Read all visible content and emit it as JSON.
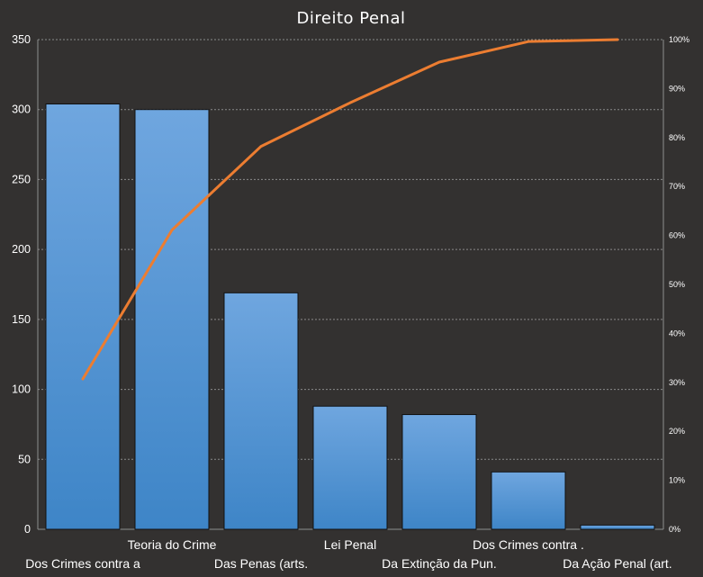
{
  "chart_data": {
    "type": "bar",
    "title": "Direito Penal",
    "xlabel": "",
    "ylabel": "",
    "categories": [
      "Dos Crimes contra a",
      "Teoria do Crime",
      "Das Penas (arts.",
      "Lei Penal",
      "Da Extinção da Pun.",
      "Dos Crimes contra .",
      "Da Ação Penal (art."
    ],
    "series": [
      {
        "type": "bar",
        "values": [
          304,
          300,
          169,
          88,
          82,
          41,
          3
        ]
      },
      {
        "type": "line",
        "axis": "secondary",
        "values": [
          30.7,
          61.1,
          78.2,
          87.1,
          95.4,
          99.6,
          100
        ]
      }
    ],
    "ylim": [
      0,
      350
    ],
    "yticks": [
      "350",
      "300",
      "250",
      "200",
      "150",
      "100",
      "50",
      "0"
    ],
    "y2lim": [
      0,
      100
    ],
    "y2ticks": [
      "100%",
      "90%",
      "80%",
      "70%",
      "60%",
      "50%",
      "40%",
      "30%",
      "20%",
      "10%",
      "0%"
    ],
    "grid": true,
    "legend": "none",
    "colors": {
      "background": "#333130",
      "bar_top": "#6FA6DF",
      "bar_bottom": "#3E85C7",
      "bar_outline": "#111111",
      "line": "#EC7D31",
      "grid": "#8A8A8A",
      "text": "#FFFFFF"
    }
  }
}
